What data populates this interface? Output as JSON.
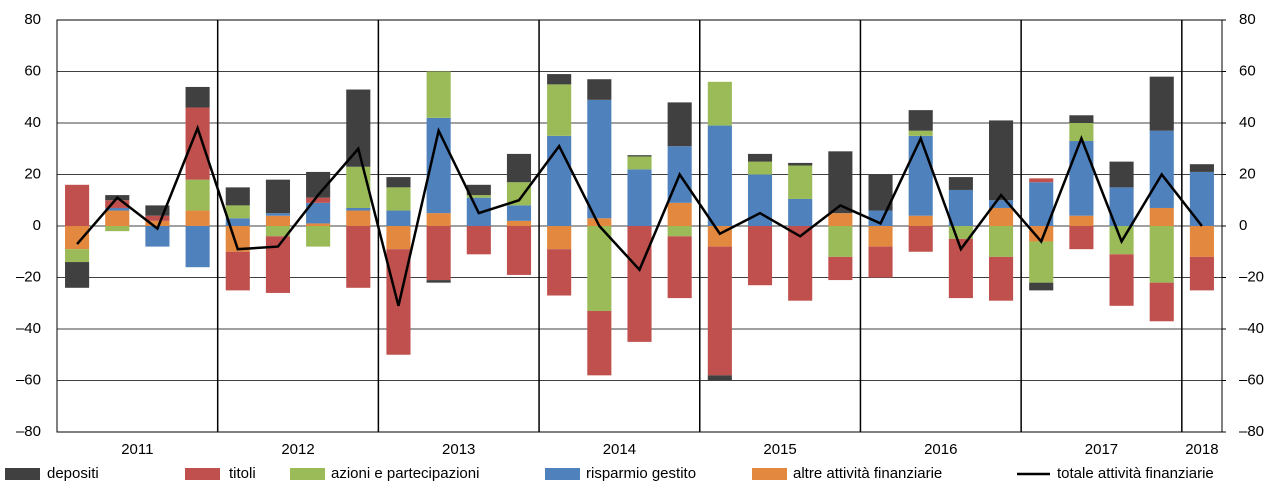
{
  "chart_data": {
    "type": "bar",
    "stacked": true,
    "categories": [
      "2011",
      null,
      null,
      null,
      "2012",
      null,
      null,
      null,
      "2013",
      null,
      null,
      null,
      "2014",
      null,
      null,
      null,
      "2015",
      null,
      null,
      null,
      "2016",
      null,
      null,
      null,
      "2017",
      null,
      null,
      null,
      "2018"
    ],
    "series": [
      {
        "name": "depositi",
        "color": "#404040",
        "values": [
          -10,
          2,
          4,
          8,
          7,
          13,
          10,
          30,
          4,
          -1,
          4,
          11,
          4,
          8,
          0.5,
          17,
          -2,
          3,
          1,
          24,
          14,
          8,
          5,
          31,
          -3,
          3,
          10,
          21,
          3
        ]
      },
      {
        "name": "titoli",
        "color": "#c0504d",
        "values": [
          16,
          3,
          2,
          28,
          -15,
          -22,
          2,
          -24,
          -41,
          -21,
          -11,
          -19,
          -18,
          -25,
          -45,
          -24,
          -50,
          -23,
          -29,
          -9,
          -12,
          -10,
          -23,
          -17,
          1.5,
          -9,
          -20,
          -15,
          -13
        ]
      },
      {
        "name": "azioni e partecipazioni",
        "color": "#9bbb59",
        "values": [
          -5,
          -2,
          0,
          12,
          5,
          -4,
          -8,
          16,
          9,
          18,
          1,
          9,
          20,
          -33,
          5,
          -4,
          17,
          5,
          13,
          -12,
          0,
          2,
          -5,
          -12,
          -16,
          7,
          -11,
          -22,
          0
        ]
      },
      {
        "name": "risparmio gestito",
        "color": "#4f81bd",
        "values": [
          0,
          1,
          -8,
          -16,
          3,
          1,
          8,
          1,
          6,
          37,
          11,
          6,
          35,
          46,
          22,
          22,
          39,
          20,
          10.5,
          0,
          6,
          31,
          14,
          3,
          17,
          29,
          15,
          30,
          21
        ]
      },
      {
        "name": "altre attività finanziarie",
        "color": "#e3883f",
        "values": [
          -9,
          6,
          2,
          6,
          -10,
          4,
          1,
          6,
          -9,
          5,
          0,
          2,
          -9,
          3,
          0,
          9,
          -8,
          0,
          0,
          5,
          -8,
          4,
          0,
          7,
          -6,
          4,
          0,
          7,
          -12
        ]
      },
      {
        "name": "totale attività finanziarie",
        "color": "#000000",
        "type": "line",
        "values": [
          -7,
          11,
          -1,
          38,
          -9,
          -8,
          12,
          30,
          -31,
          37,
          5,
          10,
          31,
          0,
          -17,
          20,
          -3,
          5,
          -4,
          8,
          1,
          34,
          -9,
          12,
          -6,
          34,
          -6,
          20,
          0
        ]
      }
    ],
    "ylim": [
      -80,
      80
    ],
    "yticks": [
      {
        "value": -80,
        "label": "–80"
      },
      {
        "value": -60,
        "label": "–60"
      },
      {
        "value": -40,
        "label": "–40"
      },
      {
        "value": -20,
        "label": "–20"
      },
      0,
      20,
      40,
      60,
      80
    ],
    "y2lim": [
      -80,
      80
    ],
    "y2ticks": [
      {
        "value": -80,
        "label": "–80"
      },
      {
        "value": -60,
        "label": "–60"
      },
      {
        "value": -40,
        "label": "–40"
      },
      {
        "value": -20,
        "label": "–20"
      },
      0,
      20,
      40,
      60,
      80
    ],
    "grid": true
  }
}
